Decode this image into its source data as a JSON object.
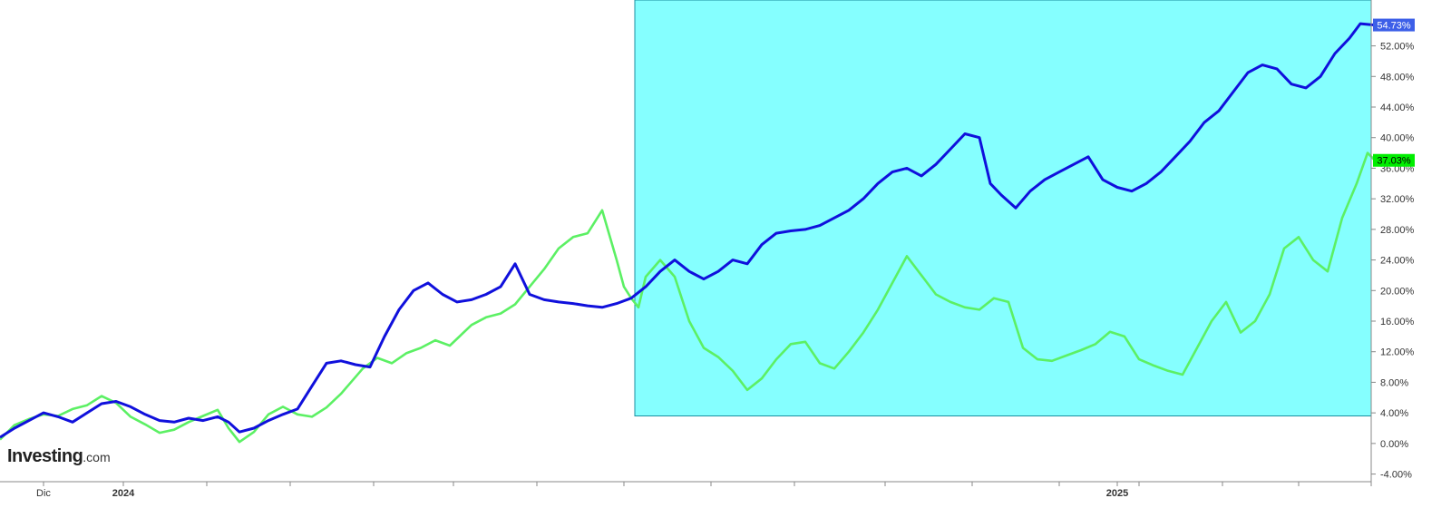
{
  "branding": {
    "logo_main": "Investing",
    "logo_suffix": ".com"
  },
  "chart_data": {
    "type": "line",
    "y_axis": {
      "position": "right",
      "unit": "%",
      "ylim": [
        -5,
        58
      ],
      "ticks": [
        "-4.00%",
        "0.00%",
        "4.00%",
        "8.00%",
        "12.00%",
        "16.00%",
        "20.00%",
        "24.00%",
        "28.00%",
        "32.00%",
        "36.00%",
        "40.00%",
        "44.00%",
        "48.00%",
        "52.00%"
      ],
      "tick_values": [
        -4,
        0,
        4,
        8,
        12,
        16,
        20,
        24,
        28,
        32,
        36,
        40,
        44,
        48,
        52
      ]
    },
    "x_axis": {
      "labels": [
        {
          "text": "Dic",
          "index": 12,
          "bold": false
        },
        {
          "text": "2024",
          "index": 34,
          "bold": true
        },
        {
          "text": "2025",
          "index": 308,
          "bold": true
        }
      ],
      "tick_indices": [
        12,
        34,
        57,
        80,
        103,
        125,
        148,
        172,
        196,
        219,
        244,
        268,
        292,
        308,
        314,
        337,
        358,
        378
      ],
      "n_points": 379
    },
    "highlight_region": {
      "from_index": 175,
      "to_index": 378,
      "y_from": 3.6,
      "y_to": 58,
      "color": "#85ffff"
    },
    "grid": false,
    "series": [
      {
        "color": "#22d42c",
        "line_color": "#5cf064",
        "last_label": "37.03%",
        "last_label_bg": "#00ee00",
        "last_label_color": "#000000",
        "points": [
          [
            0,
            0.5
          ],
          [
            4,
            2.4
          ],
          [
            8,
            3.2
          ],
          [
            12,
            3.8
          ],
          [
            16,
            3.6
          ],
          [
            20,
            4.5
          ],
          [
            24,
            5.0
          ],
          [
            28,
            6.2
          ],
          [
            32,
            5.3
          ],
          [
            36,
            3.5
          ],
          [
            40,
            2.5
          ],
          [
            44,
            1.4
          ],
          [
            48,
            1.8
          ],
          [
            52,
            2.8
          ],
          [
            56,
            3.6
          ],
          [
            60,
            4.4
          ],
          [
            63,
            2.0
          ],
          [
            66,
            0.2
          ],
          [
            70,
            1.5
          ],
          [
            74,
            3.8
          ],
          [
            78,
            4.8
          ],
          [
            82,
            3.8
          ],
          [
            86,
            3.5
          ],
          [
            90,
            4.7
          ],
          [
            94,
            6.5
          ],
          [
            100,
            9.8
          ],
          [
            104,
            11.2
          ],
          [
            108,
            10.5
          ],
          [
            112,
            11.8
          ],
          [
            116,
            12.5
          ],
          [
            120,
            13.5
          ],
          [
            124,
            12.8
          ],
          [
            130,
            15.5
          ],
          [
            134,
            16.5
          ],
          [
            138,
            17.0
          ],
          [
            142,
            18.2
          ],
          [
            146,
            20.5
          ],
          [
            150,
            22.8
          ],
          [
            154,
            25.5
          ],
          [
            158,
            27.0
          ],
          [
            162,
            27.5
          ],
          [
            166,
            30.5
          ],
          [
            170,
            24.0
          ],
          [
            172,
            20.5
          ],
          [
            174,
            19.0
          ],
          [
            176,
            17.8
          ],
          [
            178,
            21.8
          ],
          [
            182,
            24.0
          ],
          [
            186,
            21.8
          ],
          [
            190,
            16.0
          ],
          [
            194,
            12.5
          ],
          [
            198,
            11.3
          ],
          [
            202,
            9.5
          ],
          [
            206,
            7.0
          ],
          [
            210,
            8.5
          ],
          [
            214,
            11.0
          ],
          [
            218,
            13.0
          ],
          [
            222,
            13.3
          ],
          [
            226,
            10.5
          ],
          [
            230,
            9.8
          ],
          [
            234,
            12.0
          ],
          [
            238,
            14.5
          ],
          [
            242,
            17.5
          ],
          [
            246,
            21.0
          ],
          [
            250,
            24.5
          ],
          [
            254,
            22.0
          ],
          [
            258,
            19.5
          ],
          [
            262,
            18.5
          ],
          [
            266,
            17.8
          ],
          [
            270,
            17.5
          ],
          [
            274,
            19.0
          ],
          [
            278,
            18.5
          ],
          [
            282,
            12.5
          ],
          [
            286,
            11.0
          ],
          [
            290,
            10.8
          ],
          [
            294,
            11.5
          ],
          [
            298,
            12.2
          ],
          [
            302,
            13.0
          ],
          [
            306,
            14.6
          ],
          [
            310,
            14.0
          ],
          [
            314,
            11.0
          ],
          [
            318,
            10.2
          ],
          [
            322,
            9.5
          ],
          [
            326,
            9.0
          ],
          [
            330,
            12.5
          ],
          [
            334,
            16.0
          ],
          [
            338,
            18.5
          ],
          [
            342,
            14.5
          ],
          [
            346,
            16.0
          ],
          [
            350,
            19.5
          ],
          [
            354,
            25.5
          ],
          [
            358,
            27.0
          ],
          [
            362,
            24.0
          ],
          [
            366,
            22.5
          ],
          [
            370,
            29.5
          ],
          [
            374,
            34.0
          ],
          [
            377,
            38.0
          ],
          [
            379,
            37.03
          ]
        ]
      },
      {
        "color": "#1010dc",
        "line_color": "#1010dc",
        "last_label": "54.73%",
        "last_label_bg": "#3d5fe8",
        "last_label_color": "#ffffff",
        "points": [
          [
            0,
            0.8
          ],
          [
            4,
            2.0
          ],
          [
            8,
            3.0
          ],
          [
            12,
            4.0
          ],
          [
            16,
            3.5
          ],
          [
            20,
            2.8
          ],
          [
            24,
            4.0
          ],
          [
            28,
            5.2
          ],
          [
            32,
            5.5
          ],
          [
            36,
            4.8
          ],
          [
            40,
            3.8
          ],
          [
            44,
            3.0
          ],
          [
            48,
            2.8
          ],
          [
            52,
            3.3
          ],
          [
            56,
            3.0
          ],
          [
            60,
            3.5
          ],
          [
            63,
            2.8
          ],
          [
            66,
            1.5
          ],
          [
            70,
            2.0
          ],
          [
            74,
            3.0
          ],
          [
            78,
            3.8
          ],
          [
            82,
            4.5
          ],
          [
            86,
            7.5
          ],
          [
            90,
            10.5
          ],
          [
            94,
            10.8
          ],
          [
            98,
            10.3
          ],
          [
            102,
            10.0
          ],
          [
            106,
            14.0
          ],
          [
            110,
            17.5
          ],
          [
            114,
            20.0
          ],
          [
            118,
            21.0
          ],
          [
            122,
            19.5
          ],
          [
            126,
            18.5
          ],
          [
            130,
            18.8
          ],
          [
            134,
            19.5
          ],
          [
            138,
            20.5
          ],
          [
            142,
            23.5
          ],
          [
            146,
            19.5
          ],
          [
            150,
            18.8
          ],
          [
            154,
            18.5
          ],
          [
            158,
            18.3
          ],
          [
            162,
            18.0
          ],
          [
            166,
            17.8
          ],
          [
            170,
            18.3
          ],
          [
            174,
            19.0
          ],
          [
            178,
            20.5
          ],
          [
            182,
            22.5
          ],
          [
            186,
            24.0
          ],
          [
            190,
            22.5
          ],
          [
            194,
            21.5
          ],
          [
            198,
            22.5
          ],
          [
            202,
            24.0
          ],
          [
            206,
            23.5
          ],
          [
            210,
            26.0
          ],
          [
            214,
            27.5
          ],
          [
            218,
            27.8
          ],
          [
            222,
            28.0
          ],
          [
            226,
            28.5
          ],
          [
            230,
            29.5
          ],
          [
            234,
            30.5
          ],
          [
            238,
            32.0
          ],
          [
            242,
            34.0
          ],
          [
            246,
            35.5
          ],
          [
            250,
            36.0
          ],
          [
            254,
            35.0
          ],
          [
            258,
            36.5
          ],
          [
            262,
            38.5
          ],
          [
            266,
            40.5
          ],
          [
            270,
            40.0
          ],
          [
            273,
            34.0
          ],
          [
            276,
            32.5
          ],
          [
            280,
            30.8
          ],
          [
            284,
            33.0
          ],
          [
            288,
            34.5
          ],
          [
            292,
            35.5
          ],
          [
            296,
            36.5
          ],
          [
            300,
            37.5
          ],
          [
            304,
            34.5
          ],
          [
            308,
            33.5
          ],
          [
            312,
            33.0
          ],
          [
            316,
            34.0
          ],
          [
            320,
            35.5
          ],
          [
            324,
            37.5
          ],
          [
            328,
            39.5
          ],
          [
            332,
            42.0
          ],
          [
            336,
            43.5
          ],
          [
            340,
            46.0
          ],
          [
            344,
            48.5
          ],
          [
            348,
            49.5
          ],
          [
            352,
            49.0
          ],
          [
            356,
            47.0
          ],
          [
            360,
            46.5
          ],
          [
            364,
            48.0
          ],
          [
            368,
            51.0
          ],
          [
            372,
            53.0
          ],
          [
            375,
            54.9
          ],
          [
            379,
            54.73
          ]
        ]
      }
    ]
  }
}
